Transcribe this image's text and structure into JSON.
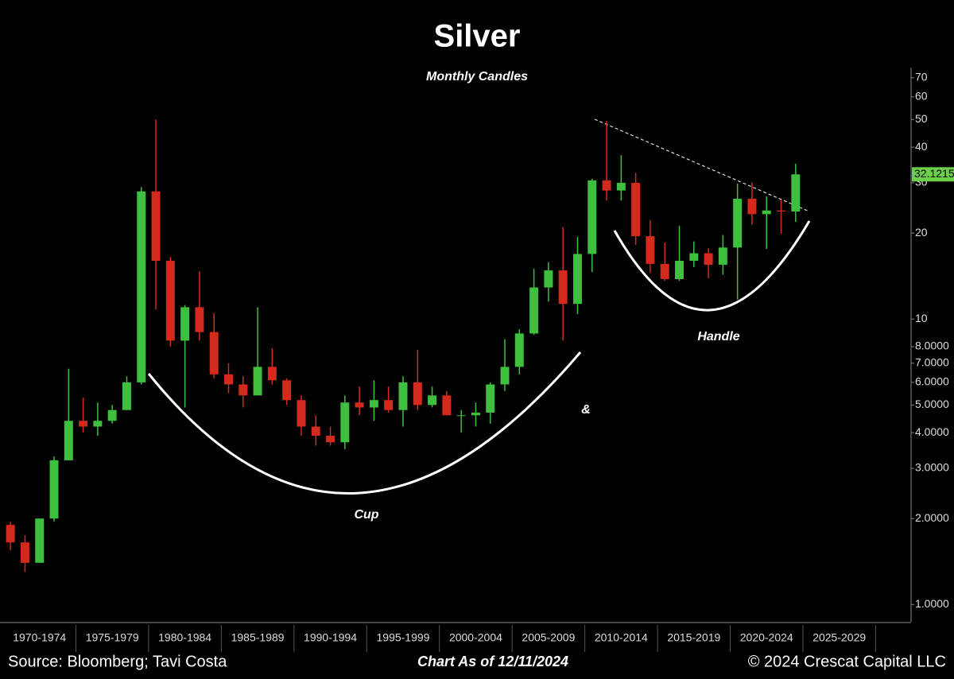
{
  "chart_data": {
    "type": "candlestick",
    "title": "Silver",
    "subtitle": "Monthly Candles",
    "x": [
      1970,
      1971,
      1972,
      1973,
      1974,
      1975,
      1976,
      1977,
      1978,
      1979,
      1980,
      1981,
      1982,
      1983,
      1984,
      1985,
      1986,
      1987,
      1988,
      1989,
      1990,
      1991,
      1992,
      1993,
      1994,
      1995,
      1996,
      1997,
      1998,
      1999,
      2000,
      2001,
      2002,
      2003,
      2004,
      2005,
      2006,
      2007,
      2008,
      2009,
      2010,
      2011,
      2012,
      2013,
      2014,
      2015,
      2016,
      2017,
      2018,
      2019,
      2020,
      2021,
      2022,
      2023,
      2024
    ],
    "open": [
      1.9,
      1.65,
      1.4,
      2.0,
      3.2,
      4.4,
      4.2,
      4.4,
      4.8,
      6.0,
      28,
      16,
      8.4,
      11,
      9,
      6.4,
      5.9,
      5.4,
      6.8,
      6.1,
      5.2,
      4.2,
      3.9,
      3.7,
      5.1,
      4.9,
      5.2,
      4.8,
      6.0,
      5.0,
      5.4,
      4.6,
      4.6,
      4.7,
      5.9,
      6.8,
      8.9,
      12.9,
      14.8,
      11.3,
      16.9,
      30.6,
      28.2,
      30,
      19.5,
      15.6,
      13.8,
      16,
      17,
      15.5,
      17.8,
      26.4,
      23.3,
      24,
      23.8
    ],
    "high": [
      1.95,
      1.75,
      2.0,
      3.3,
      6.7,
      5.3,
      5.1,
      5.0,
      6.3,
      29,
      50,
      16.5,
      11.2,
      14.7,
      10.5,
      7,
      6.3,
      11,
      7.9,
      6.2,
      5.4,
      4.6,
      4.2,
      5.4,
      5.8,
      6.1,
      5.8,
      6.3,
      7.8,
      5.8,
      5.6,
      4.8,
      5.1,
      6.0,
      8.5,
      9.2,
      15,
      15.8,
      21,
      19.4,
      31,
      49.5,
      37.5,
      32.5,
      22.2,
      18.5,
      21.2,
      18.7,
      17.7,
      19.7,
      29.8,
      30.1,
      26.9,
      26.1,
      35
    ],
    "low": [
      1.55,
      1.3,
      1.4,
      1.95,
      3.2,
      4.0,
      3.9,
      4.3,
      4.8,
      5.9,
      10.8,
      8.0,
      4.9,
      8.4,
      6.2,
      5.5,
      4.9,
      5.4,
      5.9,
      5.0,
      3.9,
      3.6,
      3.6,
      3.5,
      4.6,
      4.4,
      4.7,
      4.2,
      4.8,
      4.9,
      4.6,
      4.0,
      4.2,
      4.3,
      5.6,
      6.4,
      8.8,
      11.5,
      8.4,
      10.4,
      14.6,
      26,
      26,
      18.2,
      14.5,
      13.6,
      13.6,
      15.2,
      13.9,
      14.3,
      11.7,
      21.4,
      17.6,
      19.9,
      21.9
    ],
    "close": [
      1.65,
      1.4,
      2.0,
      3.2,
      4.4,
      4.2,
      4.4,
      4.8,
      6.0,
      28,
      16,
      8.4,
      11,
      9,
      6.4,
      5.9,
      5.4,
      6.8,
      6.1,
      5.2,
      4.2,
      3.9,
      3.7,
      5.1,
      4.9,
      5.2,
      4.8,
      6.0,
      5.0,
      5.4,
      4.6,
      4.6,
      4.7,
      5.9,
      6.8,
      8.9,
      12.9,
      14.8,
      11.3,
      16.9,
      30.6,
      28.2,
      30,
      19.5,
      15.6,
      13.8,
      16,
      17,
      15.5,
      17.8,
      26.4,
      23.3,
      24,
      23.8,
      32.12
    ],
    "up_color": "#3fbf3f",
    "down_color": "#d42a1e",
    "last_price": 32.1215,
    "xlim": [
      1970,
      2032
    ],
    "xticks": [
      {
        "value": 1972.5,
        "label": "1970-1974"
      },
      {
        "value": 1977.5,
        "label": "1975-1979"
      },
      {
        "value": 1982.5,
        "label": "1980-1984"
      },
      {
        "value": 1987.5,
        "label": "1985-1989"
      },
      {
        "value": 1992.5,
        "label": "1990-1994"
      },
      {
        "value": 1997.5,
        "label": "1995-1999"
      },
      {
        "value": 2002.5,
        "label": "2000-2004"
      },
      {
        "value": 2007.5,
        "label": "2005-2009"
      },
      {
        "value": 2012.5,
        "label": "2010-2014"
      },
      {
        "value": 2017.5,
        "label": "2015-2019"
      },
      {
        "value": 2022.5,
        "label": "2020-2024"
      },
      {
        "value": 2027.5,
        "label": "2025-2029"
      }
    ],
    "ylim": [
      0.87,
      76
    ],
    "log_scale": true,
    "yticks": [
      70,
      60,
      50,
      40,
      30,
      20,
      10,
      {
        "value": 8,
        "label": "8.0000"
      },
      {
        "value": 7,
        "label": "7.0000"
      },
      {
        "value": 6,
        "label": "6.0000"
      },
      {
        "value": 5,
        "label": "5.0000"
      },
      {
        "value": 4,
        "label": "4.0000"
      },
      {
        "value": 3,
        "label": "3.0000"
      },
      {
        "value": 2,
        "label": "2.0000"
      },
      {
        "value": 1,
        "label": "1.0000"
      }
    ],
    "annotations": [
      "Cup",
      "&",
      "Handle"
    ],
    "footer": {
      "source": "Source: Bloomberg; Tavi Costa",
      "date": "Chart As of 12/11/2024",
      "copyright": "© 2024 Crescat Capital LLC"
    }
  }
}
